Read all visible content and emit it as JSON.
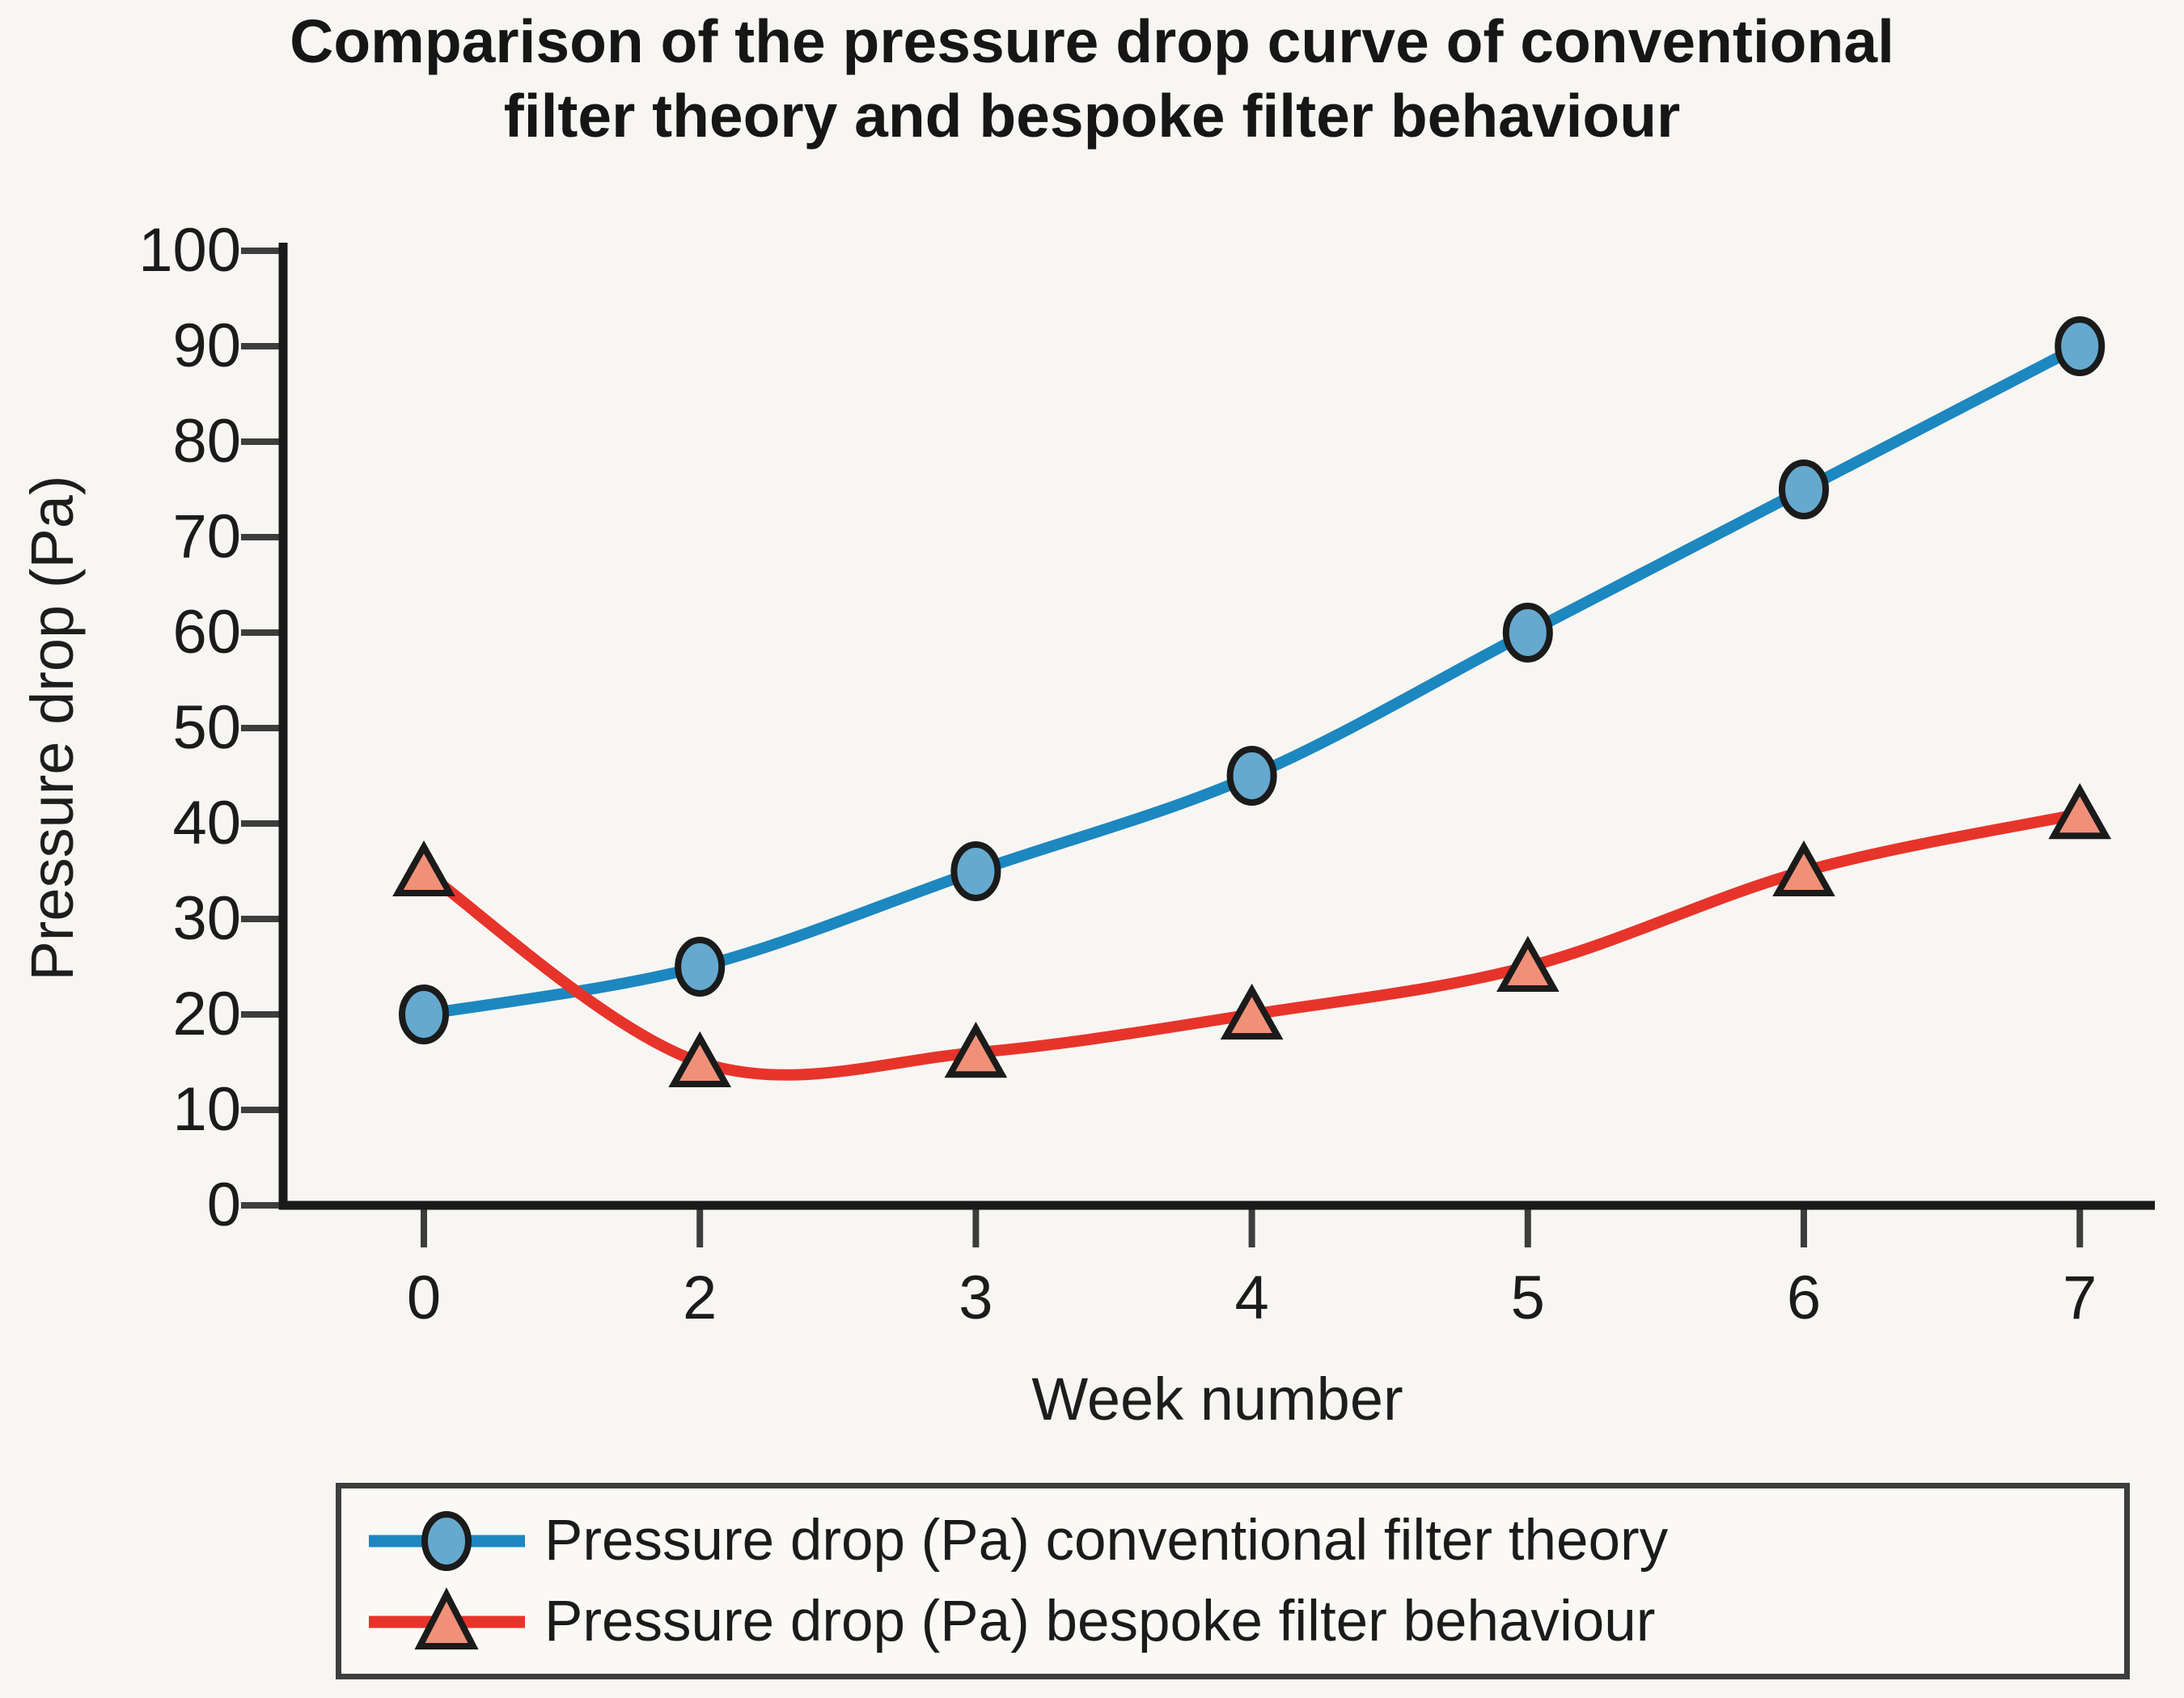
{
  "title": {
    "line1": "Comparison of the pressure drop curve of conventional",
    "line2": "filter theory and bespoke filter behaviour"
  },
  "y_axis": {
    "label": "Pressure drop (Pa)",
    "ticks": [
      0,
      10,
      20,
      30,
      40,
      50,
      60,
      70,
      80,
      90,
      100
    ],
    "min": 0,
    "max": 100
  },
  "x_axis": {
    "label": "Week number",
    "tick_labels": [
      "0",
      "2",
      "3",
      "4",
      "5",
      "6",
      "7"
    ],
    "spacing": "categorical-even"
  },
  "colors": {
    "background": "#f8f6f3",
    "axis": "#1a1a1a",
    "tick": "#3d3d3d",
    "text": "#1b1b1b",
    "legend_border": "#3e3e3e",
    "legend_background": "#faf9f6",
    "marker_stroke": "#1b1b1b",
    "series_blue_line": "#1d87c0",
    "series_blue_fill": "#66a9ce",
    "series_red_line": "#e7342b",
    "series_red_fill": "#f19078"
  },
  "chart_data": {
    "type": "line",
    "title": "Comparison of the pressure drop curve of conventional filter theory and bespoke filter behaviour",
    "xlabel": "Week number",
    "ylabel": "Pressure drop (Pa)",
    "categories": [
      0,
      2,
      3,
      4,
      5,
      6,
      7
    ],
    "series": [
      {
        "name": "Pressure drop (Pa) conventional filter theory",
        "marker": "circle",
        "line_color": "#1d87c0",
        "marker_fill": "#66a9ce",
        "values": [
          20,
          25,
          35,
          45,
          60,
          75,
          90
        ]
      },
      {
        "name": "Pressure drop (Pa) bespoke filter behaviour",
        "marker": "triangle",
        "line_color": "#e7342b",
        "marker_fill": "#f19078",
        "values": [
          35,
          15,
          16,
          20,
          25,
          35,
          41
        ]
      }
    ],
    "ylim": [
      0,
      100
    ],
    "grid": false,
    "smooth_lines": true,
    "legend_position": "bottom"
  }
}
